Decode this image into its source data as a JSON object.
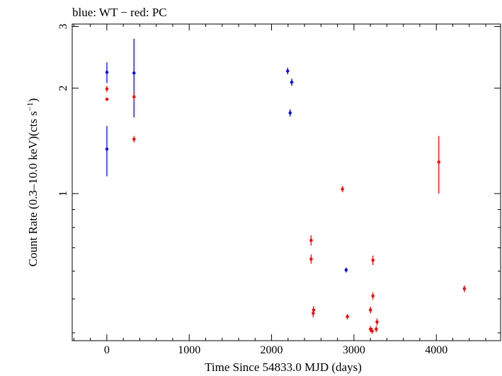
{
  "chart_data": {
    "type": "scatter",
    "title": "blue: WT − red: PC",
    "xlabel": "Time Since 54833.0 MJD (days)",
    "ylabel": "Count Rate (0.3–10.0 keV)(cts s",
    "ylabel_sup": "−1",
    "ylabel_close": ")",
    "xlim": [
      -420,
      4780
    ],
    "ylim": [
      0.38,
      3.05
    ],
    "y_scale": "log",
    "x_ticks": [
      0,
      1000,
      2000,
      3000,
      4000
    ],
    "x_tick_labels": [
      "0",
      "1000",
      "2000",
      "3000",
      "4000"
    ],
    "y_major_ticks": [
      1,
      2,
      3
    ],
    "y_tick_labels": [
      "1",
      "2",
      "3"
    ],
    "y_minor_ticks": [
      0.4,
      0.5,
      0.6,
      0.7,
      0.8,
      0.9
    ],
    "x_minor_step": 200,
    "series": [
      {
        "name": "WT",
        "color": "#0000ff",
        "points": [
          {
            "x": 1,
            "y": 2.22,
            "err": 0.15
          },
          {
            "x": 1,
            "y": 1.34,
            "err": 0.22
          },
          {
            "x": 330,
            "y": 2.21,
            "err": 0.56
          },
          {
            "x": 2195,
            "y": 2.24,
            "err": 0.05
          },
          {
            "x": 2245,
            "y": 2.08,
            "err": 0.05
          },
          {
            "x": 2225,
            "y": 1.7,
            "err": 0.04
          },
          {
            "x": 2905,
            "y": 0.605,
            "err": 0.01
          }
        ]
      },
      {
        "name": "PC",
        "color": "#ff0000",
        "points": [
          {
            "x": 1,
            "y": 1.99,
            "err": 0.04
          },
          {
            "x": 1,
            "y": 1.86,
            "err": 0.02
          },
          {
            "x": 330,
            "y": 1.89,
            "err": 0.06
          },
          {
            "x": 330,
            "y": 1.43,
            "err": 0.03
          },
          {
            "x": 2480,
            "y": 0.735,
            "err": 0.025
          },
          {
            "x": 2480,
            "y": 0.65,
            "err": 0.02
          },
          {
            "x": 2510,
            "y": 0.465,
            "err": 0.012
          },
          {
            "x": 2505,
            "y": 0.455,
            "err": 0.012
          },
          {
            "x": 2860,
            "y": 1.03,
            "err": 0.02
          },
          {
            "x": 2920,
            "y": 0.445,
            "err": 0.008
          },
          {
            "x": 3200,
            "y": 0.465,
            "err": 0.01
          },
          {
            "x": 3230,
            "y": 0.645,
            "err": 0.02
          },
          {
            "x": 3230,
            "y": 0.51,
            "err": 0.012
          },
          {
            "x": 3200,
            "y": 0.41,
            "err": 0.008
          },
          {
            "x": 3220,
            "y": 0.405,
            "err": 0.008
          },
          {
            "x": 3280,
            "y": 0.43,
            "err": 0.01
          },
          {
            "x": 3270,
            "y": 0.41,
            "err": 0.008
          },
          {
            "x": 4030,
            "y": 1.23,
            "err": 0.23
          },
          {
            "x": 4340,
            "y": 0.535,
            "err": 0.012
          }
        ]
      }
    ]
  }
}
